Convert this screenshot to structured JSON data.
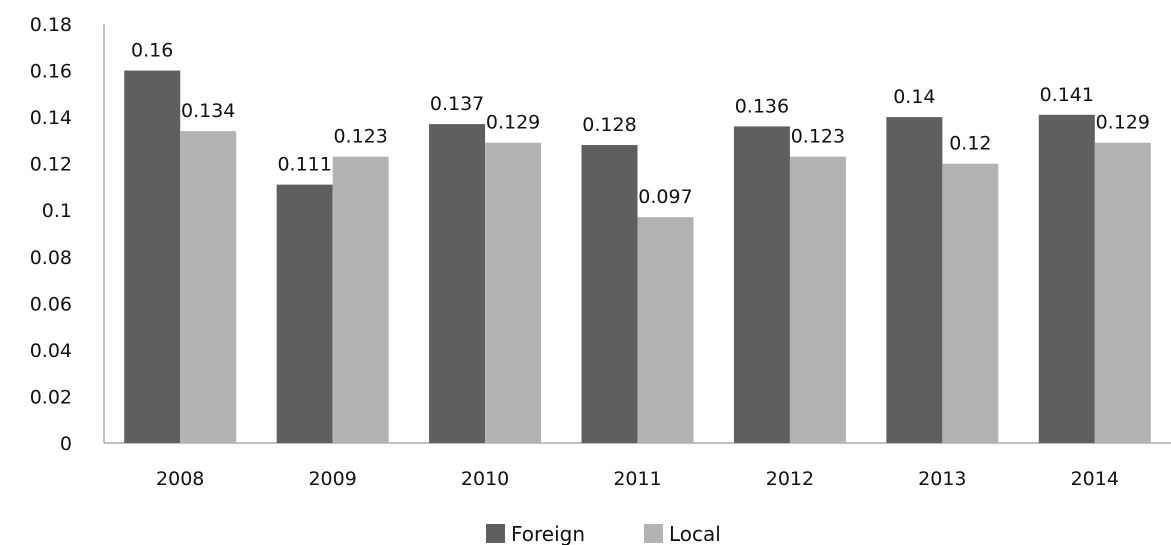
{
  "chart_data": {
    "type": "bar",
    "categories": [
      "2008",
      "2009",
      "2010",
      "2011",
      "2012",
      "2013",
      "2014"
    ],
    "series": [
      {
        "name": "Foreign",
        "color": "#5f5f5f",
        "values": [
          0.16,
          0.111,
          0.137,
          0.128,
          0.136,
          0.14,
          0.141
        ],
        "labels": [
          "0.16",
          "0.111",
          "0.137",
          "0.128",
          "0.136",
          "0.14",
          "0.141"
        ]
      },
      {
        "name": "Local",
        "color": "#b3b3b3",
        "values": [
          0.134,
          0.123,
          0.129,
          0.097,
          0.123,
          0.12,
          0.129
        ],
        "labels": [
          "0.134",
          "0.123",
          "0.129",
          "0.097",
          "0.123",
          "0.12",
          "0.129"
        ]
      }
    ],
    "y_ticks": [
      "0",
      "0.02",
      "0.04",
      "0.06",
      "0.08",
      "0.1",
      "0.12",
      "0.14",
      "0.16",
      "0.18"
    ],
    "ylim": [
      0,
      0.18
    ],
    "grid": false,
    "legend_position": "bottom-center",
    "title": "",
    "xlabel": "",
    "ylabel": ""
  }
}
